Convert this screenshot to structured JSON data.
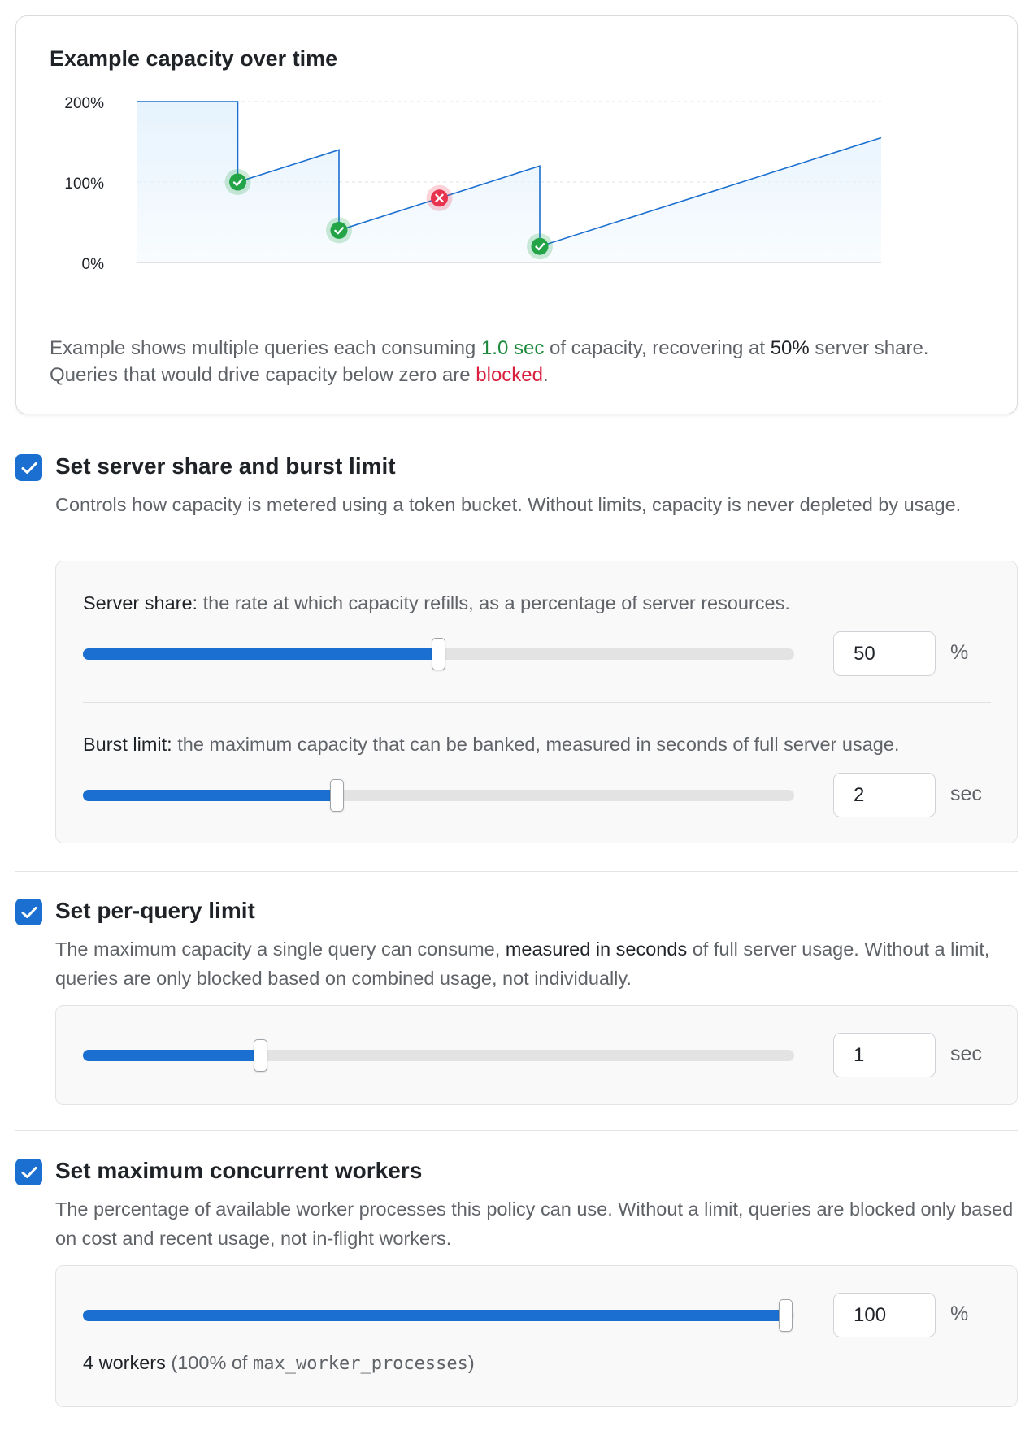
{
  "chart_card": {
    "title": "Example capacity over time",
    "caption": {
      "part1": "Example shows multiple queries each consuming ",
      "consume": "1.0 sec",
      "part2": " of capacity, recovering at ",
      "rate": "50%",
      "part3": " server share. Queries that would drive capacity below zero are ",
      "blocked": "blocked",
      "part4": "."
    }
  },
  "chart_data": {
    "type": "area",
    "title": "Example capacity over time",
    "xlabel": "",
    "ylabel": "",
    "y_ticks": [
      "200%",
      "100%",
      "0%"
    ],
    "ylim": [
      0,
      200
    ],
    "xlim": [
      0,
      100
    ],
    "grid": true,
    "line_color": "#1a6fd0",
    "fill_color": "#e6f3fd",
    "series": [
      {
        "points": [
          [
            0,
            200
          ],
          [
            13.5,
            200
          ],
          [
            13.5,
            100
          ],
          [
            27.1,
            140
          ],
          [
            27.1,
            40
          ],
          [
            54.1,
            120
          ],
          [
            54.1,
            20
          ],
          [
            100,
            155
          ]
        ]
      }
    ],
    "events": [
      {
        "x": 13.5,
        "y": 100,
        "status": "accepted"
      },
      {
        "x": 27.1,
        "y": 40,
        "status": "accepted"
      },
      {
        "x": 40.6,
        "y": 80,
        "status": "blocked"
      },
      {
        "x": 54.1,
        "y": 20,
        "status": "accepted"
      }
    ],
    "colors": {
      "accepted": "#22a447",
      "blocked": "#e8334e"
    }
  },
  "sections": {
    "share_burst": {
      "checked": true,
      "title": "Set server share and burst limit",
      "description": "Controls how capacity is metered using a token bucket. Without limits, capacity is never depleted by usage.",
      "server_share": {
        "label_bold": "Server share:",
        "label_rest": " the rate at which capacity refills, as a percentage of server resources.",
        "value": "50",
        "unit": "%",
        "slider_fraction": 0.5
      },
      "burst_limit": {
        "label_bold": "Burst limit:",
        "label_rest": " the maximum capacity that can be banked, measured in seconds of full server usage.",
        "value": "2",
        "unit": "sec",
        "slider_fraction": 0.357
      }
    },
    "per_query": {
      "checked": true,
      "title": "Set per-query limit",
      "description_part1": "The maximum capacity a single query can consume, ",
      "description_bold": "measured in seconds",
      "description_part2": " of full server usage. Without a limit, queries are only blocked based on combined usage, not individually.",
      "value": "1",
      "unit": "sec",
      "slider_fraction": 0.25
    },
    "workers": {
      "checked": true,
      "title": "Set maximum concurrent workers",
      "description": "The percentage of available worker processes this policy can use. Without a limit, queries are blocked only based on cost and recent usage, not in-flight workers.",
      "value": "100",
      "unit": "%",
      "slider_fraction": 1.0,
      "note_count": "4 workers",
      "note_paren_open": " (100% of ",
      "note_code": "max_worker_processes",
      "note_paren_close": ")"
    }
  },
  "colors": {
    "accent": "#1a6fd0",
    "track": "#e3e3e3",
    "success": "#22a447",
    "danger": "#e8334e"
  }
}
